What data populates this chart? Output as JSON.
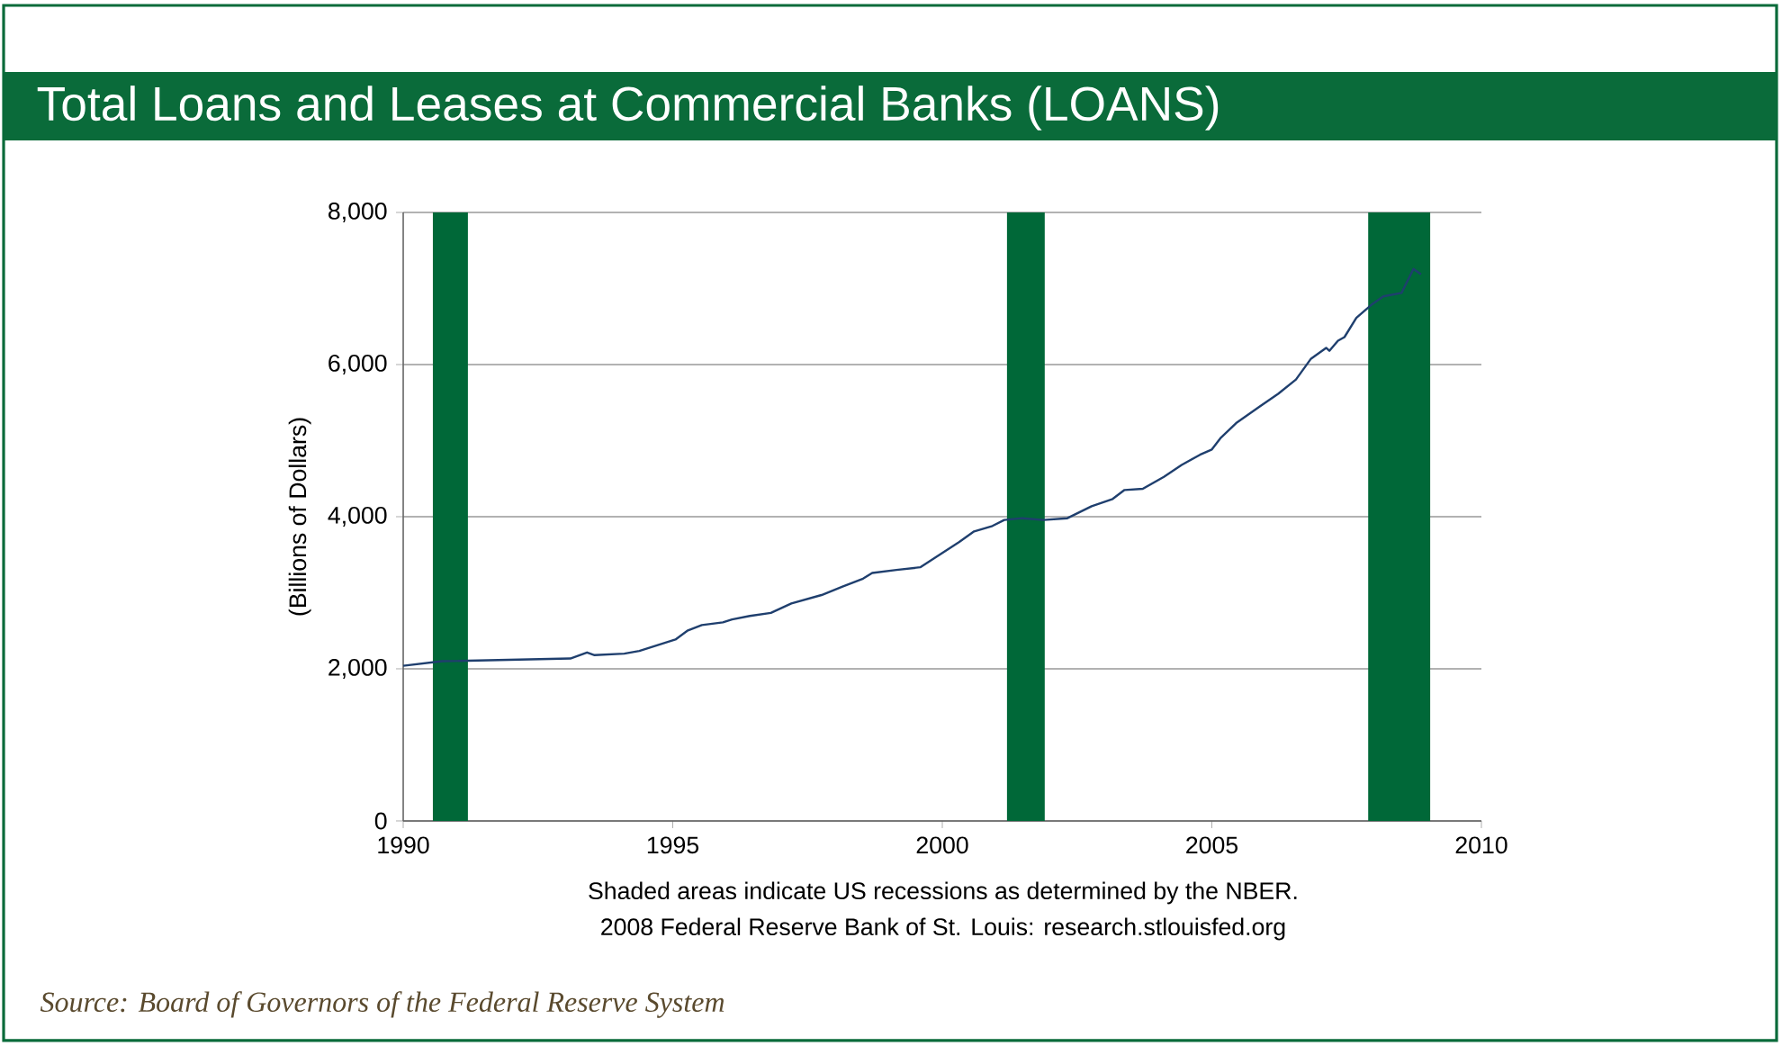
{
  "chart_data": {
    "type": "line",
    "title": "Total Loans and Leases at Commercial Banks (LOANS)",
    "ylabel": "(Billions of Dollars)",
    "annotations": [
      "Shaded areas indicate US recessions as determined by the NBER.",
      "2008 Federal Reserve Bank of St. Louis: research.stlouisfed.org",
      "Source: Board of Governors of the Federal Reserve System"
    ],
    "xlim": [
      1990,
      2010
    ],
    "xticks": [
      1990,
      1995,
      2000,
      2005,
      2010
    ],
    "ylim": [
      0,
      8000
    ],
    "yticks": [
      {
        "value": 0,
        "label": "0"
      },
      {
        "value": 2000,
        "label": "2,000"
      },
      {
        "value": 4000,
        "label": "4,000"
      },
      {
        "value": 6000,
        "label": "6,000"
      },
      {
        "value": 8000,
        "label": "8,000"
      }
    ],
    "grid": "y",
    "bands": [
      {
        "axis": "x",
        "from": 1990.55,
        "to": 1991.2,
        "color": "#006838"
      },
      {
        "axis": "x",
        "from": 2001.2,
        "to": 2001.9,
        "color": "#006838"
      },
      {
        "axis": "x",
        "from": 2007.9,
        "to": 2009.05,
        "color": "#006838"
      }
    ],
    "series": [
      {
        "color": "#1f3f6e",
        "x": [
          1990.0,
          1990.72,
          1993.1,
          1993.41,
          1993.55,
          1994.1,
          1994.38,
          1995.05,
          1995.27,
          1995.54,
          1995.93,
          1996.1,
          1996.43,
          1996.82,
          1997.2,
          1997.76,
          1998.15,
          1998.53,
          1998.7,
          1999.15,
          1999.59,
          1999.95,
          2000.31,
          2000.59,
          2000.93,
          2001.15,
          2001.48,
          2001.88,
          2002.32,
          2002.77,
          2003.16,
          2003.38,
          2003.72,
          2004.11,
          2004.44,
          2004.78,
          2005.0,
          2005.17,
          2005.45,
          2005.89,
          2006.23,
          2006.56,
          2006.84,
          2007.12,
          2007.18,
          2007.34,
          2007.46,
          2007.68,
          2007.96,
          2008.18,
          2008.52,
          2008.74,
          2008.88
        ],
        "values": [
          2040,
          2100,
          2135,
          2215,
          2180,
          2200,
          2235,
          2385,
          2500,
          2575,
          2610,
          2650,
          2695,
          2735,
          2860,
          2970,
          3080,
          3185,
          3260,
          3300,
          3335,
          3500,
          3666,
          3807,
          3878,
          3957,
          3980,
          3957,
          3980,
          4138,
          4233,
          4351,
          4367,
          4524,
          4681,
          4814,
          4884,
          5041,
          5230,
          5450,
          5615,
          5803,
          6078,
          6220,
          6181,
          6314,
          6361,
          6613,
          6786,
          6896,
          6943,
          7258,
          7187
        ]
      }
    ]
  }
}
